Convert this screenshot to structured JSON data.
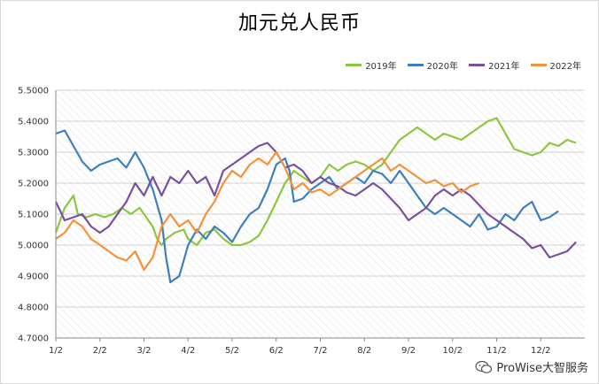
{
  "chart_data": {
    "type": "line",
    "title": "加元兑人民币",
    "xlabel": "",
    "ylabel": "",
    "x_ticks": [
      "1/2",
      "2/2",
      "3/2",
      "4/2",
      "5/2",
      "6/2",
      "7/2",
      "8/2",
      "9/2",
      "10/2",
      "11/2",
      "12/2"
    ],
    "y_ticks": [
      "4.7000",
      "4.8000",
      "4.9000",
      "5.0000",
      "5.1000",
      "5.2000",
      "5.3000",
      "5.4000",
      "5.5000"
    ],
    "ylim": [
      4.7,
      5.5
    ],
    "grid": true,
    "legend_position": "top-right",
    "series": [
      {
        "name": "2019年",
        "color": "#8cc63f",
        "points": [
          [
            0.0,
            5.04
          ],
          [
            0.2,
            5.12
          ],
          [
            0.4,
            5.16
          ],
          [
            0.5,
            5.1
          ],
          [
            0.7,
            5.09
          ],
          [
            0.9,
            5.1
          ],
          [
            1.1,
            5.09
          ],
          [
            1.3,
            5.1
          ],
          [
            1.5,
            5.12
          ],
          [
            1.7,
            5.1
          ],
          [
            1.9,
            5.12
          ],
          [
            2.0,
            5.1
          ],
          [
            2.1,
            5.08
          ],
          [
            2.2,
            5.06
          ],
          [
            2.3,
            5.02
          ],
          [
            2.4,
            5.0
          ],
          [
            2.5,
            5.02
          ],
          [
            2.7,
            5.04
          ],
          [
            2.9,
            5.05
          ],
          [
            3.0,
            5.02
          ],
          [
            3.2,
            5.0
          ],
          [
            3.4,
            5.04
          ],
          [
            3.6,
            5.05
          ],
          [
            3.8,
            5.02
          ],
          [
            4.0,
            5.0
          ],
          [
            4.2,
            5.0
          ],
          [
            4.4,
            5.01
          ],
          [
            4.6,
            5.03
          ],
          [
            4.8,
            5.08
          ],
          [
            5.0,
            5.14
          ],
          [
            5.2,
            5.2
          ],
          [
            5.4,
            5.24
          ],
          [
            5.6,
            5.22
          ],
          [
            5.8,
            5.2
          ],
          [
            6.0,
            5.22
          ],
          [
            6.2,
            5.26
          ],
          [
            6.4,
            5.24
          ],
          [
            6.6,
            5.26
          ],
          [
            6.8,
            5.27
          ],
          [
            7.0,
            5.26
          ],
          [
            7.2,
            5.24
          ],
          [
            7.4,
            5.26
          ],
          [
            7.6,
            5.3
          ],
          [
            7.8,
            5.34
          ],
          [
            8.0,
            5.36
          ],
          [
            8.2,
            5.38
          ],
          [
            8.4,
            5.36
          ],
          [
            8.6,
            5.34
          ],
          [
            8.8,
            5.36
          ],
          [
            9.0,
            5.35
          ],
          [
            9.2,
            5.34
          ],
          [
            9.4,
            5.36
          ],
          [
            9.6,
            5.38
          ],
          [
            9.8,
            5.4
          ],
          [
            10.0,
            5.41
          ],
          [
            10.2,
            5.36
          ],
          [
            10.4,
            5.31
          ],
          [
            10.6,
            5.3
          ],
          [
            10.8,
            5.29
          ],
          [
            11.0,
            5.3
          ],
          [
            11.2,
            5.33
          ],
          [
            11.4,
            5.32
          ],
          [
            11.6,
            5.34
          ],
          [
            11.8,
            5.33
          ]
        ]
      },
      {
        "name": "2020年",
        "color": "#3d7ebf",
        "points": [
          [
            0.0,
            5.36
          ],
          [
            0.2,
            5.37
          ],
          [
            0.4,
            5.32
          ],
          [
            0.6,
            5.27
          ],
          [
            0.8,
            5.24
          ],
          [
            1.0,
            5.26
          ],
          [
            1.2,
            5.27
          ],
          [
            1.4,
            5.28
          ],
          [
            1.6,
            5.25
          ],
          [
            1.8,
            5.3
          ],
          [
            2.0,
            5.25
          ],
          [
            2.2,
            5.18
          ],
          [
            2.4,
            5.08
          ],
          [
            2.5,
            4.96
          ],
          [
            2.6,
            4.88
          ],
          [
            2.8,
            4.9
          ],
          [
            3.0,
            5.0
          ],
          [
            3.2,
            5.05
          ],
          [
            3.4,
            5.02
          ],
          [
            3.6,
            5.06
          ],
          [
            3.8,
            5.04
          ],
          [
            4.0,
            5.01
          ],
          [
            4.2,
            5.06
          ],
          [
            4.4,
            5.1
          ],
          [
            4.6,
            5.12
          ],
          [
            4.8,
            5.18
          ],
          [
            5.0,
            5.26
          ],
          [
            5.2,
            5.28
          ],
          [
            5.3,
            5.24
          ],
          [
            5.4,
            5.14
          ],
          [
            5.6,
            5.15
          ],
          [
            5.8,
            5.18
          ],
          [
            6.0,
            5.2
          ],
          [
            6.2,
            5.22
          ],
          [
            6.4,
            5.18
          ],
          [
            6.6,
            5.2
          ],
          [
            6.8,
            5.22
          ],
          [
            7.0,
            5.2
          ],
          [
            7.2,
            5.24
          ],
          [
            7.4,
            5.23
          ],
          [
            7.6,
            5.2
          ],
          [
            7.8,
            5.24
          ],
          [
            8.0,
            5.2
          ],
          [
            8.2,
            5.16
          ],
          [
            8.4,
            5.12
          ],
          [
            8.6,
            5.1
          ],
          [
            8.8,
            5.12
          ],
          [
            9.0,
            5.1
          ],
          [
            9.2,
            5.08
          ],
          [
            9.4,
            5.06
          ],
          [
            9.6,
            5.1
          ],
          [
            9.8,
            5.05
          ],
          [
            10.0,
            5.06
          ],
          [
            10.2,
            5.1
          ],
          [
            10.4,
            5.08
          ],
          [
            10.6,
            5.12
          ],
          [
            10.8,
            5.14
          ],
          [
            11.0,
            5.08
          ],
          [
            11.2,
            5.09
          ],
          [
            11.4,
            5.11
          ]
        ]
      },
      {
        "name": "2021年",
        "color": "#7b4fa0",
        "points": [
          [
            0.0,
            5.14
          ],
          [
            0.2,
            5.08
          ],
          [
            0.4,
            5.09
          ],
          [
            0.6,
            5.1
          ],
          [
            0.8,
            5.06
          ],
          [
            1.0,
            5.04
          ],
          [
            1.2,
            5.06
          ],
          [
            1.4,
            5.1
          ],
          [
            1.6,
            5.14
          ],
          [
            1.8,
            5.2
          ],
          [
            2.0,
            5.16
          ],
          [
            2.2,
            5.22
          ],
          [
            2.4,
            5.16
          ],
          [
            2.6,
            5.22
          ],
          [
            2.8,
            5.2
          ],
          [
            3.0,
            5.24
          ],
          [
            3.2,
            5.2
          ],
          [
            3.4,
            5.22
          ],
          [
            3.6,
            5.16
          ],
          [
            3.8,
            5.24
          ],
          [
            4.0,
            5.26
          ],
          [
            4.2,
            5.28
          ],
          [
            4.4,
            5.3
          ],
          [
            4.6,
            5.32
          ],
          [
            4.8,
            5.33
          ],
          [
            5.0,
            5.3
          ],
          [
            5.2,
            5.25
          ],
          [
            5.4,
            5.26
          ],
          [
            5.6,
            5.24
          ],
          [
            5.8,
            5.2
          ],
          [
            6.0,
            5.22
          ],
          [
            6.2,
            5.2
          ],
          [
            6.4,
            5.19
          ],
          [
            6.6,
            5.17
          ],
          [
            6.8,
            5.16
          ],
          [
            7.0,
            5.18
          ],
          [
            7.2,
            5.2
          ],
          [
            7.4,
            5.18
          ],
          [
            7.6,
            5.15
          ],
          [
            7.8,
            5.12
          ],
          [
            8.0,
            5.08
          ],
          [
            8.2,
            5.1
          ],
          [
            8.4,
            5.12
          ],
          [
            8.6,
            5.16
          ],
          [
            8.8,
            5.18
          ],
          [
            9.0,
            5.16
          ],
          [
            9.2,
            5.18
          ],
          [
            9.4,
            5.16
          ],
          [
            9.6,
            5.13
          ],
          [
            9.8,
            5.1
          ],
          [
            10.0,
            5.08
          ],
          [
            10.2,
            5.06
          ],
          [
            10.4,
            5.04
          ],
          [
            10.6,
            5.02
          ],
          [
            10.8,
            4.99
          ],
          [
            11.0,
            5.0
          ],
          [
            11.2,
            4.96
          ],
          [
            11.4,
            4.97
          ],
          [
            11.6,
            4.98
          ],
          [
            11.8,
            5.01
          ]
        ]
      },
      {
        "name": "2022年",
        "color": "#f4913a",
        "points": [
          [
            0.0,
            5.02
          ],
          [
            0.2,
            5.04
          ],
          [
            0.4,
            5.08
          ],
          [
            0.6,
            5.06
          ],
          [
            0.8,
            5.02
          ],
          [
            1.0,
            5.0
          ],
          [
            1.2,
            4.98
          ],
          [
            1.4,
            4.96
          ],
          [
            1.6,
            4.95
          ],
          [
            1.8,
            4.98
          ],
          [
            2.0,
            4.92
          ],
          [
            2.2,
            4.96
          ],
          [
            2.4,
            5.06
          ],
          [
            2.6,
            5.1
          ],
          [
            2.8,
            5.06
          ],
          [
            3.0,
            5.08
          ],
          [
            3.2,
            5.04
          ],
          [
            3.4,
            5.1
          ],
          [
            3.6,
            5.14
          ],
          [
            3.8,
            5.2
          ],
          [
            4.0,
            5.24
          ],
          [
            4.2,
            5.22
          ],
          [
            4.4,
            5.26
          ],
          [
            4.6,
            5.28
          ],
          [
            4.8,
            5.26
          ],
          [
            5.0,
            5.3
          ],
          [
            5.2,
            5.25
          ],
          [
            5.4,
            5.18
          ],
          [
            5.6,
            5.2
          ],
          [
            5.8,
            5.17
          ],
          [
            6.0,
            5.18
          ],
          [
            6.2,
            5.16
          ],
          [
            6.4,
            5.18
          ],
          [
            6.6,
            5.2
          ],
          [
            6.8,
            5.22
          ],
          [
            7.0,
            5.24
          ],
          [
            7.2,
            5.26
          ],
          [
            7.4,
            5.28
          ],
          [
            7.6,
            5.24
          ],
          [
            7.8,
            5.26
          ],
          [
            8.0,
            5.24
          ],
          [
            8.2,
            5.22
          ],
          [
            8.4,
            5.2
          ],
          [
            8.6,
            5.21
          ],
          [
            8.8,
            5.19
          ],
          [
            9.0,
            5.2
          ],
          [
            9.2,
            5.17
          ],
          [
            9.4,
            5.19
          ],
          [
            9.6,
            5.2
          ]
        ]
      }
    ]
  },
  "watermark": {
    "text": "ProWise大智服务"
  }
}
